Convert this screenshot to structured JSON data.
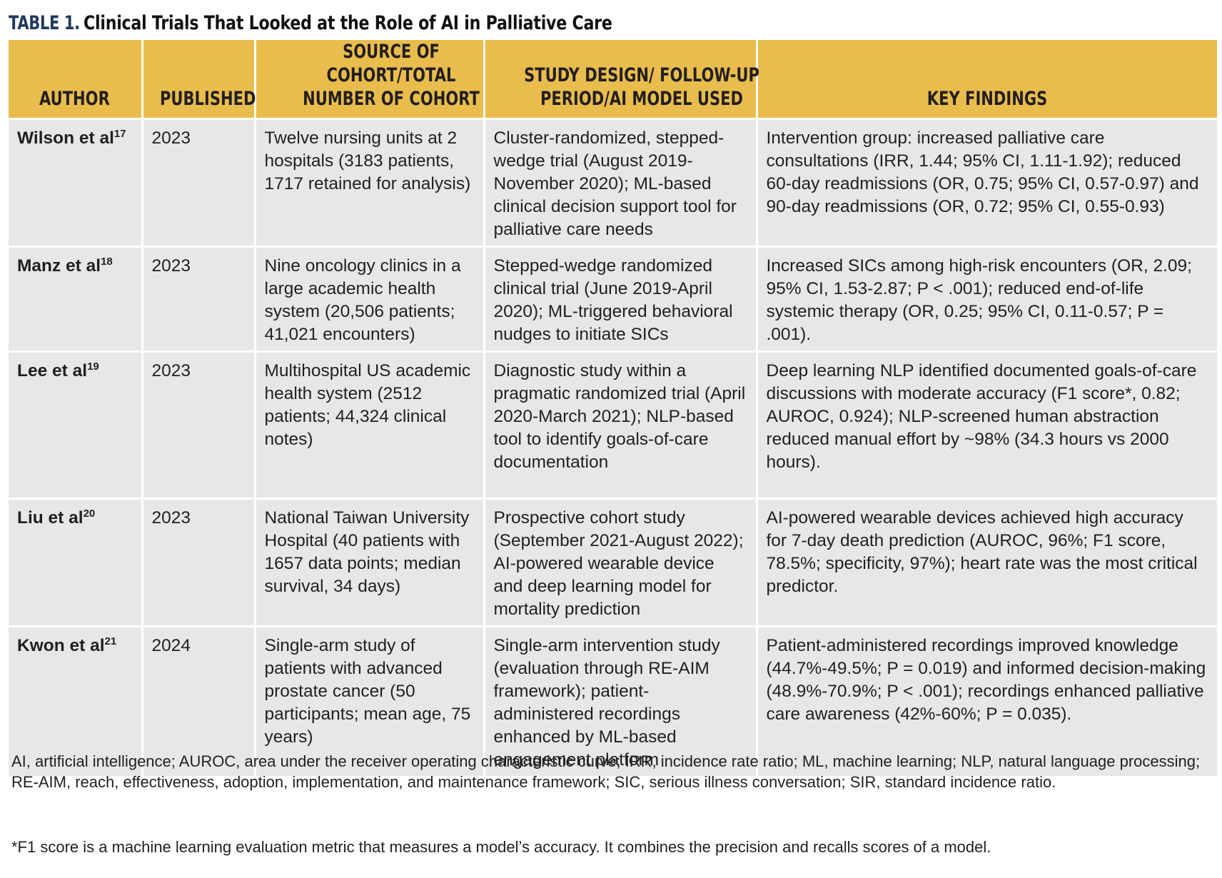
{
  "title": {
    "label": "TABLE 1.",
    "text": "Clinical Trials That Looked at the Role of AI in Palliative Care"
  },
  "columns": [
    "AUTHOR",
    "PUBLISHED",
    "SOURCE OF COHORT/TOTAL NUMBER OF COHORT",
    "STUDY DESIGN/ FOLLOW-UP PERIOD/AI MODEL USED",
    "KEY FINDINGS"
  ],
  "rows": [
    {
      "author": "Wilson et al",
      "ref": "17",
      "published": "2023",
      "source": "Twelve nursing units at 2 hospitals (3183 patients, 1717 retained for analysis)",
      "design": "Cluster-randomized, stepped-wedge trial (August 2019-November 2020); ML-based clinical decision support tool for palliative care needs",
      "findings": "Intervention group: increased palliative care consultations (IRR, 1.44; 95% CI, 1.11-1.92); reduced 60-day readmissions (OR, 0.75; 95% CI, 0.57-0.97) and 90-day readmissions (OR, 0.72; 95% CI, 0.55-0.93)"
    },
    {
      "author": "Manz et al",
      "ref": "18",
      "published": "2023",
      "source": "Nine oncology clinics in a large academic health system (20,506 patients; 41,021 encounters)",
      "design": "Stepped-wedge randomized clinical trial (June 2019-April 2020); ML-triggered behavioral nudges to initiate SICs",
      "findings": "Increased SICs among high-risk encounters (OR, 2.09; 95% CI, 1.53-2.87; P < .001); reduced end-of-life systemic therapy (OR, 0.25; 95% CI, 0.11-0.57; P = .001)."
    },
    {
      "author": "Lee et al",
      "ref": "19",
      "published": "2023",
      "source": "Multihospital US academic health system (2512 patients; 44,324 clinical notes)",
      "design": "Diagnostic study within a pragmatic randomized trial (April 2020-March 2021); NLP-based tool to identify goals-of-care documentation",
      "findings": "Deep learning NLP identified documented goals-of-care discussions with moderate accuracy (F1 score*, 0.82; AUROC, 0.924); NLP-screened human abstraction reduced manual effort by ~98% (34.3 hours vs 2000 hours)."
    },
    {
      "author": "Liu et al",
      "ref": "20",
      "published": "2023",
      "source": "National Taiwan University Hospital (40 patients with 1657 data points; median survival, 34 days)",
      "design": "Prospective cohort study (September 2021-August 2022); AI-powered wearable device and deep learning model for mortality prediction",
      "findings": "AI-powered wearable devices achieved high accuracy for 7-day death prediction (AUROC, 96%; F1 score, 78.5%; specificity, 97%); heart rate was the most critical predictor."
    },
    {
      "author": "Kwon et al",
      "ref": "21",
      "published": "2024",
      "source": "Single-arm study of patients with advanced prostate cancer (50 participants; mean age, 75 years)",
      "design": "Single-arm intervention study (evaluation through RE-AIM framework); patient-administered recordings enhanced by ML-based engagement platform",
      "findings": "Patient-administered recordings improved knowledge (44.7%-49.5%; P = 0.019) and informed decision-making (48.9%-70.9%; P < .001); recordings enhanced palliative care awareness (42%-60%; P = 0.035)."
    }
  ],
  "footnotes": {
    "abbreviations": "AI, artificial intelligence; AUROC, area under the receiver operating characteristic curve; IRR, incidence rate ratio; ML, machine learning; NLP, natural language processing; RE-AIM, reach, effectiveness, adoption, implementation, and maintenance framework; SIC, serious illness conversation; SIR, standard incidence ratio.",
    "f1_note": "*F1 score is a machine learning evaluation metric that measures a model’s accuracy. It combines the precision and recalls scores of a model."
  }
}
